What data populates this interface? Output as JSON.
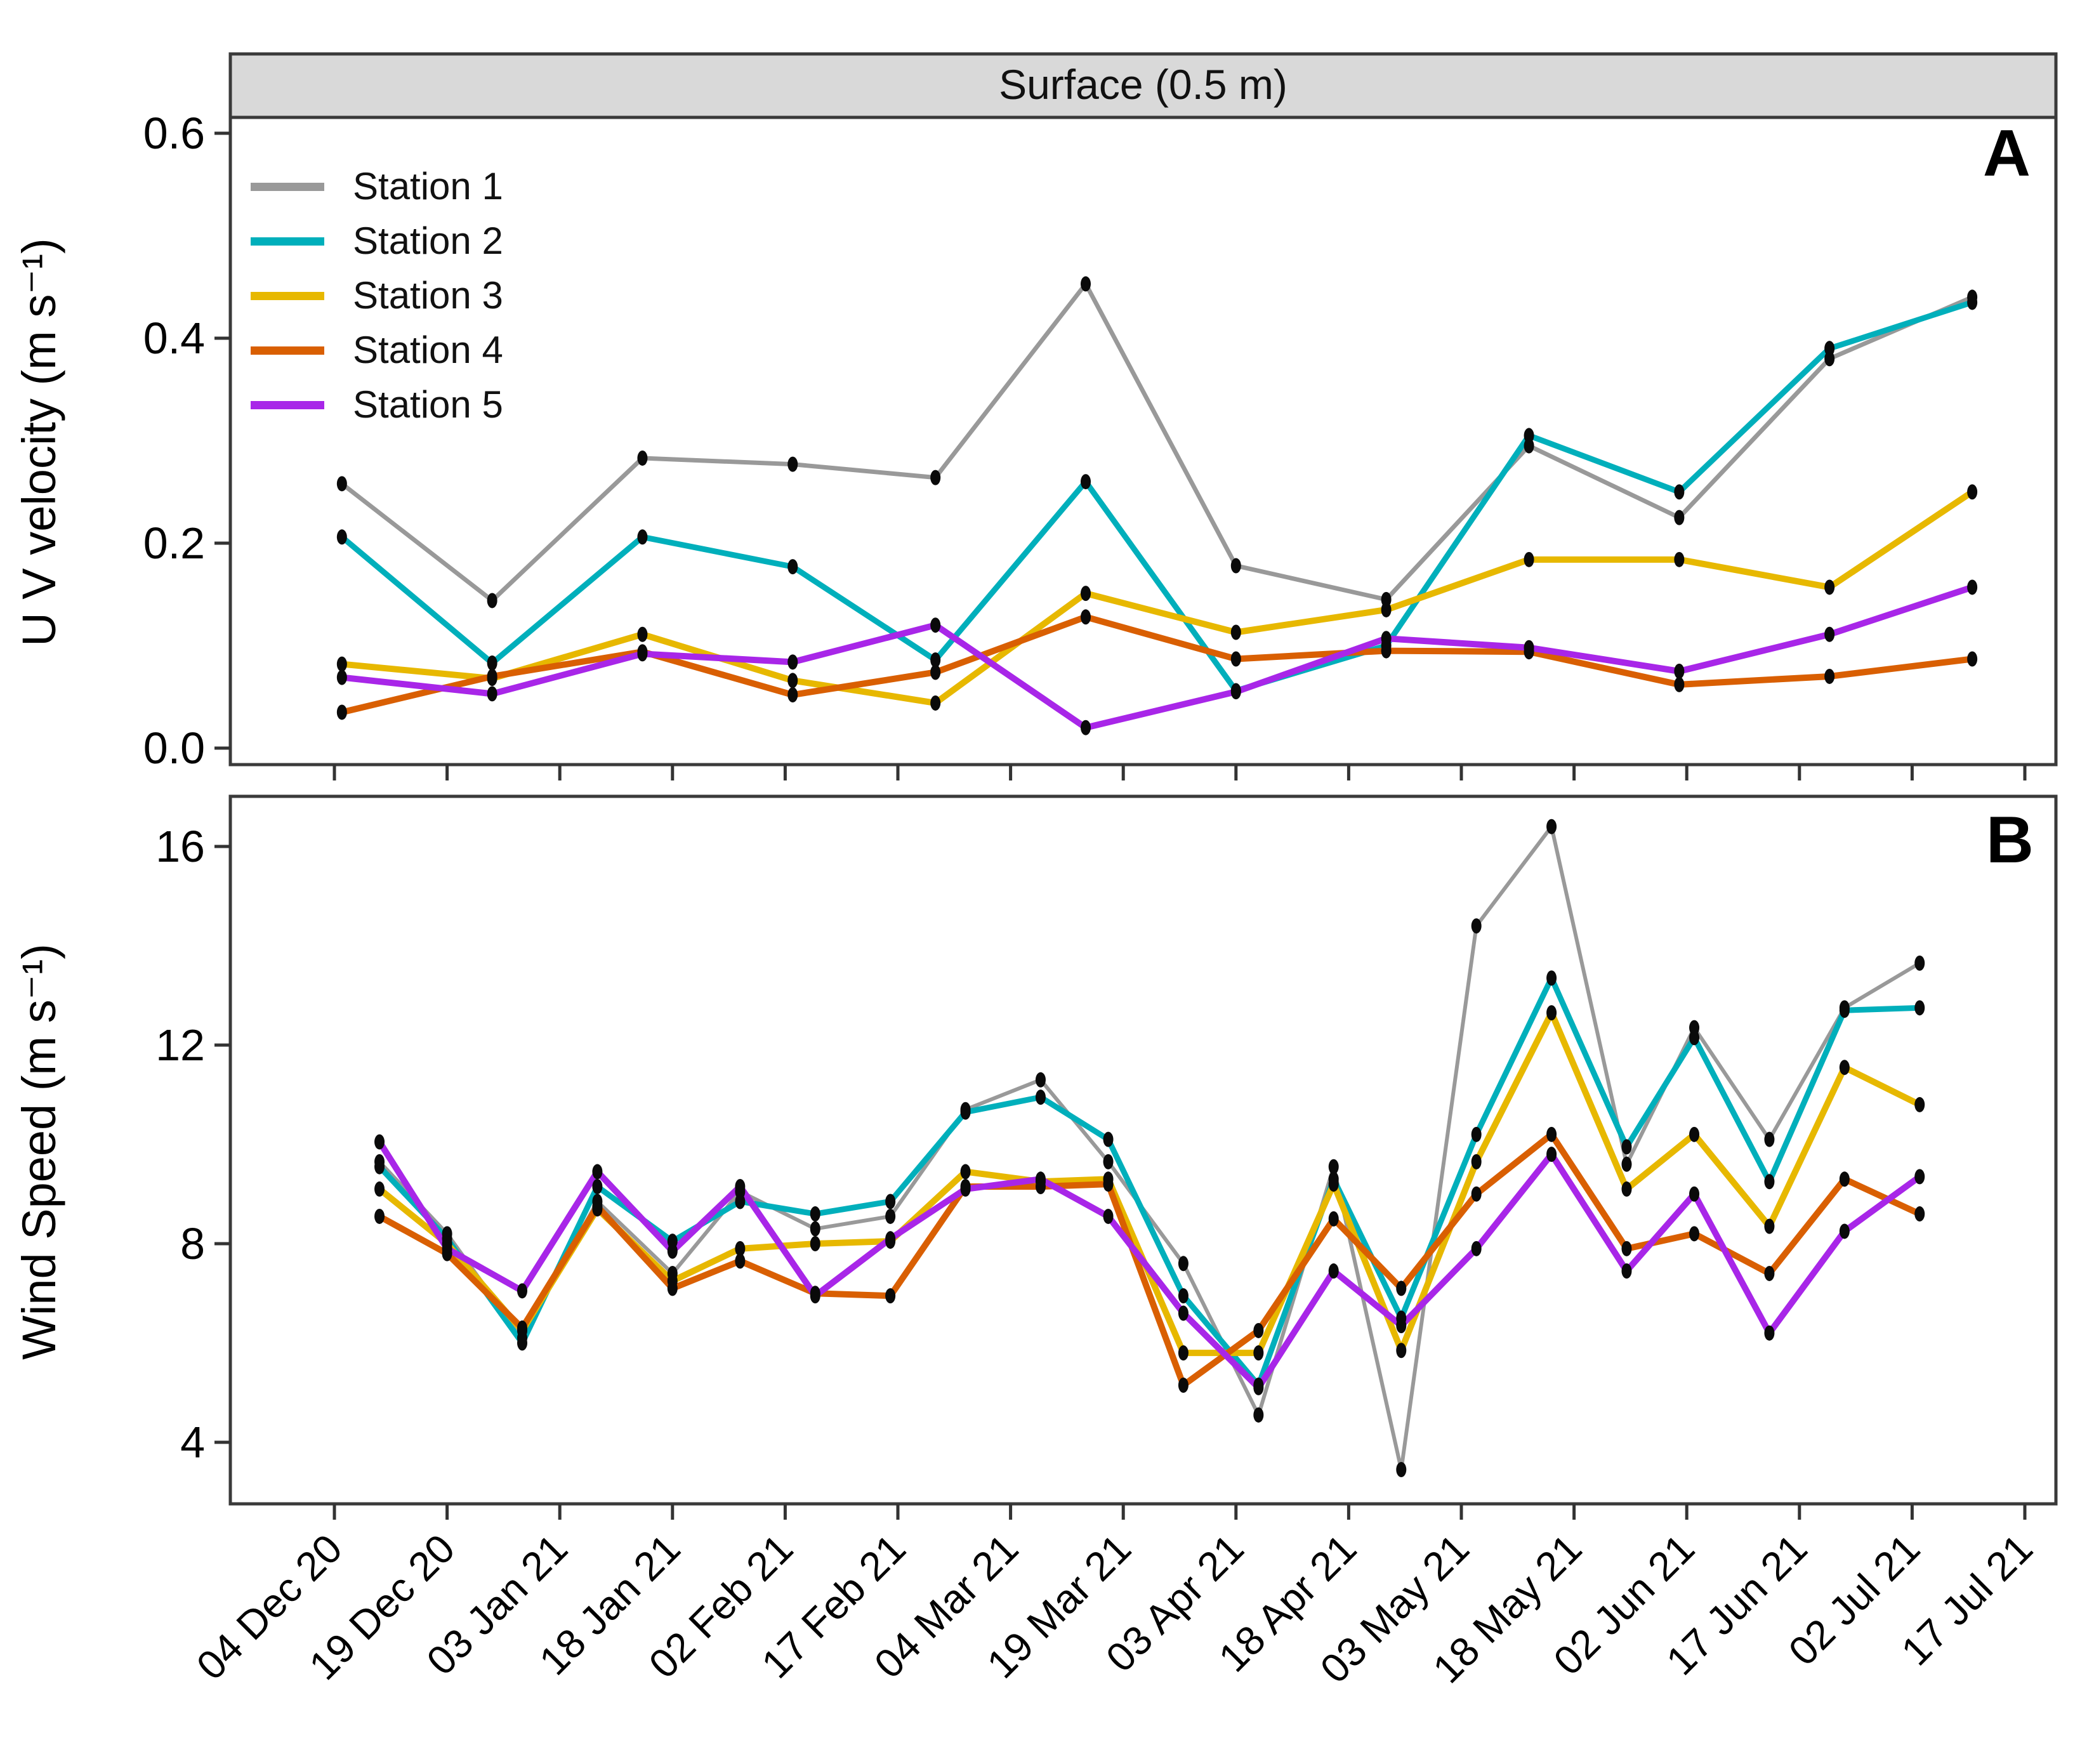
{
  "strip": {
    "title": "Surface (0.5 m)"
  },
  "panels": [
    {
      "letter": "A",
      "y_axis_title": "U V velocity (m s⁻¹)"
    },
    {
      "letter": "B",
      "y_axis_title": "Wind Speed (m s⁻¹)"
    }
  ],
  "legend": {
    "items": [
      {
        "label": "Station 1",
        "color": "#999999"
      },
      {
        "label": "Station 2",
        "color": "#00AFBB"
      },
      {
        "label": "Station 3",
        "color": "#E7B800"
      },
      {
        "label": "Station 4",
        "color": "#D95F02"
      },
      {
        "label": "Station 5",
        "color": "#A826E8"
      }
    ]
  },
  "colors": {
    "strip_fill": "#D9D9D9",
    "frame": "#3a3a3a",
    "tick": "#333333",
    "marker": "#0a0a0a",
    "background": "#ffffff"
  },
  "chart_data": [
    {
      "type": "line",
      "panel": "A",
      "title": "Surface (0.5 m)",
      "ylabel": "U V velocity (m s⁻¹)",
      "ylim": [
        -0.02,
        0.62
      ],
      "ytick_values": [
        0.0,
        0.2,
        0.4,
        0.6
      ],
      "ytick_labels": [
        "0.0",
        "0.2",
        "0.4",
        "0.6"
      ],
      "x_unit": "days since 04 Dec 2020",
      "xtick_days": [
        0,
        15,
        30,
        45,
        60,
        75,
        90,
        105,
        120,
        135,
        150,
        165,
        180,
        195,
        210,
        225
      ],
      "xtick_labels": [
        "04 Dec 20",
        "19 Dec 20",
        "03 Jan 21",
        "18 Jan 21",
        "02 Feb 21",
        "17 Feb 21",
        "04 Mar 21",
        "19 Mar 21",
        "03 Apr 21",
        "18 Apr 21",
        "03 May 21",
        "18 May 21",
        "02 Jun 21",
        "17 Jun 21",
        "02 Jul 21",
        "17 Jul 21"
      ],
      "legend_position": "top-left-inside",
      "grid": false,
      "sample_days": [
        1,
        21,
        41,
        61,
        80,
        100,
        120,
        140,
        159,
        179,
        199,
        218
      ],
      "sample_dates": [
        "05 Dec 20",
        "25 Dec 20",
        "14 Jan 21",
        "03 Feb 21",
        "22 Feb 21",
        "14 Mar 21",
        "03 Apr 21",
        "23 Apr 21",
        "12 May 21",
        "01 Jun 21",
        "21 Jun 21",
        "10 Jul 21"
      ],
      "series": [
        {
          "name": "Station 1",
          "color": "#999999",
          "line_width": 7,
          "values": [
            0.258,
            0.144,
            0.283,
            0.277,
            0.264,
            0.453,
            0.178,
            0.145,
            0.295,
            0.225,
            0.38,
            0.44
          ]
        },
        {
          "name": "Station 2",
          "color": "#00AFBB",
          "line_width": 9,
          "values": [
            0.206,
            0.083,
            0.206,
            0.177,
            0.086,
            0.26,
            0.056,
            0.1,
            0.305,
            0.25,
            0.39,
            0.435
          ]
        },
        {
          "name": "Station 3",
          "color": "#E7B800",
          "line_width": 10,
          "values": [
            0.082,
            0.068,
            0.111,
            0.066,
            0.044,
            0.151,
            0.113,
            0.135,
            0.184,
            0.184,
            0.157,
            0.25
          ]
        },
        {
          "name": "Station 4",
          "color": "#D95F02",
          "line_width": 10,
          "values": [
            0.035,
            0.07,
            0.094,
            0.052,
            0.074,
            0.128,
            0.087,
            0.095,
            0.094,
            0.062,
            0.07,
            0.087
          ]
        },
        {
          "name": "Station 5",
          "color": "#A826E8",
          "line_width": 10,
          "values": [
            0.069,
            0.053,
            0.092,
            0.084,
            0.12,
            0.02,
            0.055,
            0.107,
            0.098,
            0.075,
            0.111,
            0.157
          ]
        }
      ]
    },
    {
      "type": "line",
      "panel": "B",
      "ylabel": "Wind Speed (m s⁻¹)",
      "ylim": [
        2.8,
        17.0
      ],
      "ytick_values": [
        4,
        8,
        12,
        16
      ],
      "ytick_labels": [
        "4",
        "8",
        "12",
        "16"
      ],
      "x_unit": "days since 04 Dec 2020",
      "xtick_days": [
        0,
        15,
        30,
        45,
        60,
        75,
        90,
        105,
        120,
        135,
        150,
        165,
        180,
        195,
        210,
        225
      ],
      "xtick_labels": [
        "04 Dec 20",
        "19 Dec 20",
        "03 Jan 21",
        "18 Jan 21",
        "02 Feb 21",
        "17 Feb 21",
        "04 Mar 21",
        "19 Mar 21",
        "03 Apr 21",
        "18 Apr 21",
        "03 May 21",
        "18 May 21",
        "02 Jun 21",
        "17 Jun 21",
        "02 Jul 21",
        "17 Jul 21"
      ],
      "grid": false,
      "sample_days": [
        6,
        15,
        25,
        35,
        45,
        54,
        64,
        74,
        84,
        94,
        103,
        113,
        123,
        133,
        142,
        152,
        162,
        172,
        181,
        191,
        201,
        211
      ],
      "sample_dates": [
        "10 Dec 20",
        "19 Dec 20",
        "29 Dec 20",
        "08 Jan 21",
        "18 Jan 21",
        "27 Jan 21",
        "06 Feb 21",
        "16 Feb 21",
        "26 Feb 21",
        "08 Mar 21",
        "17 Mar 21",
        "27 Mar 21",
        "06 Apr 21",
        "16 Apr 21",
        "25 Apr 21",
        "05 May 21",
        "15 May 21",
        "25 May 21",
        "03 Jun 21",
        "13 Jun 21",
        "23 Jun 21",
        "03 Jul 21"
      ],
      "series": [
        {
          "name": "Station 1",
          "color": "#999999",
          "line_width": 6,
          "values": [
            9.65,
            8.2,
            6.1,
            8.85,
            7.4,
            9.05,
            8.3,
            8.55,
            10.7,
            11.3,
            9.65,
            7.6,
            4.55,
            9.55,
            3.45,
            14.4,
            16.4,
            9.6,
            12.35,
            10.1,
            12.75,
            13.65
          ]
        },
        {
          "name": "Station 2",
          "color": "#00AFBB",
          "line_width": 9,
          "values": [
            9.55,
            8.1,
            6.0,
            9.15,
            8.05,
            8.85,
            8.6,
            8.85,
            10.65,
            10.95,
            10.1,
            6.95,
            5.15,
            9.3,
            6.5,
            10.2,
            13.35,
            9.95,
            12.15,
            9.25,
            12.7,
            12.75
          ]
        },
        {
          "name": "Station 3",
          "color": "#E7B800",
          "line_width": 10,
          "values": [
            9.1,
            8.0,
            6.25,
            8.7,
            7.25,
            7.9,
            8.0,
            8.05,
            9.45,
            9.25,
            9.3,
            5.8,
            5.8,
            9.2,
            5.85,
            9.65,
            12.65,
            9.1,
            10.2,
            8.35,
            11.55,
            10.8
          ]
        },
        {
          "name": "Station 4",
          "color": "#D95F02",
          "line_width": 10,
          "values": [
            8.55,
            7.8,
            6.3,
            8.75,
            7.1,
            7.65,
            7.0,
            6.95,
            9.15,
            9.15,
            9.2,
            5.15,
            6.25,
            8.5,
            7.1,
            9.0,
            10.2,
            7.9,
            8.2,
            7.4,
            9.3,
            8.6
          ]
        },
        {
          "name": "Station 5",
          "color": "#A826E8",
          "line_width": 10,
          "values": [
            10.05,
            7.9,
            7.05,
            9.45,
            7.85,
            9.15,
            6.95,
            8.1,
            9.1,
            9.3,
            8.55,
            6.6,
            5.1,
            7.45,
            6.35,
            7.9,
            9.8,
            7.45,
            9.0,
            6.2,
            8.25,
            9.35
          ]
        }
      ]
    }
  ]
}
